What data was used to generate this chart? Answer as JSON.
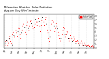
{
  "title": "Milwaukee Weather  Solar Radiation\nAvg per Day W/m²/minute",
  "title_fontsize": 3.0,
  "background_color": "#ffffff",
  "plot_background": "#ffffff",
  "legend_label": "Solar Rad",
  "legend_color": "#ff0000",
  "dot_color_primary": "#ff0000",
  "dot_color_secondary": "#000000",
  "dashed_line_color": "#bbbbbb",
  "yticks": [
    0,
    1,
    2,
    3,
    4,
    5,
    6,
    7,
    8
  ],
  "ylim": [
    -0.2,
    8.5
  ],
  "xlim": [
    0,
    365
  ],
  "data": [
    {
      "day": 1,
      "val": 1.2,
      "color": "#000000"
    },
    {
      "day": 3,
      "val": 0.8,
      "color": "#ff0000"
    },
    {
      "day": 5,
      "val": 1.5,
      "color": "#ff0000"
    },
    {
      "day": 8,
      "val": 2.0,
      "color": "#000000"
    },
    {
      "day": 10,
      "val": 1.8,
      "color": "#ff0000"
    },
    {
      "day": 12,
      "val": 0.5,
      "color": "#ff0000"
    },
    {
      "day": 15,
      "val": 1.2,
      "color": "#ff0000"
    },
    {
      "day": 18,
      "val": 2.5,
      "color": "#000000"
    },
    {
      "day": 20,
      "val": 3.0,
      "color": "#ff0000"
    },
    {
      "day": 22,
      "val": 2.2,
      "color": "#ff0000"
    },
    {
      "day": 25,
      "val": 1.5,
      "color": "#ff0000"
    },
    {
      "day": 28,
      "val": 1.0,
      "color": "#ff0000"
    },
    {
      "day": 31,
      "val": 0.8,
      "color": "#000000"
    },
    {
      "day": 33,
      "val": 3.5,
      "color": "#ff0000"
    },
    {
      "day": 36,
      "val": 4.0,
      "color": "#ff0000"
    },
    {
      "day": 39,
      "val": 3.2,
      "color": "#000000"
    },
    {
      "day": 42,
      "val": 2.8,
      "color": "#ff0000"
    },
    {
      "day": 45,
      "val": 4.5,
      "color": "#ff0000"
    },
    {
      "day": 48,
      "val": 3.8,
      "color": "#ff0000"
    },
    {
      "day": 51,
      "val": 3.0,
      "color": "#ff0000"
    },
    {
      "day": 54,
      "val": 4.2,
      "color": "#000000"
    },
    {
      "day": 57,
      "val": 5.0,
      "color": "#ff0000"
    },
    {
      "day": 60,
      "val": 4.8,
      "color": "#ff0000"
    },
    {
      "day": 63,
      "val": 3.5,
      "color": "#ff0000"
    },
    {
      "day": 66,
      "val": 2.5,
      "color": "#ff0000"
    },
    {
      "day": 69,
      "val": 3.8,
      "color": "#000000"
    },
    {
      "day": 72,
      "val": 4.5,
      "color": "#ff0000"
    },
    {
      "day": 75,
      "val": 5.5,
      "color": "#ff0000"
    },
    {
      "day": 78,
      "val": 6.0,
      "color": "#ff0000"
    },
    {
      "day": 81,
      "val": 5.2,
      "color": "#000000"
    },
    {
      "day": 84,
      "val": 4.0,
      "color": "#ff0000"
    },
    {
      "day": 87,
      "val": 3.5,
      "color": "#ff0000"
    },
    {
      "day": 90,
      "val": 5.8,
      "color": "#ff0000"
    },
    {
      "day": 93,
      "val": 6.5,
      "color": "#ff0000"
    },
    {
      "day": 96,
      "val": 5.0,
      "color": "#000000"
    },
    {
      "day": 99,
      "val": 4.5,
      "color": "#ff0000"
    },
    {
      "day": 102,
      "val": 5.5,
      "color": "#ff0000"
    },
    {
      "day": 105,
      "val": 6.8,
      "color": "#ff0000"
    },
    {
      "day": 108,
      "val": 7.0,
      "color": "#ff0000"
    },
    {
      "day": 111,
      "val": 6.2,
      "color": "#000000"
    },
    {
      "day": 114,
      "val": 5.5,
      "color": "#ff0000"
    },
    {
      "day": 117,
      "val": 4.8,
      "color": "#ff0000"
    },
    {
      "day": 120,
      "val": 5.2,
      "color": "#ff0000"
    },
    {
      "day": 123,
      "val": 6.0,
      "color": "#ff0000"
    },
    {
      "day": 126,
      "val": 7.2,
      "color": "#000000"
    },
    {
      "day": 129,
      "val": 6.5,
      "color": "#ff0000"
    },
    {
      "day": 132,
      "val": 5.8,
      "color": "#ff0000"
    },
    {
      "day": 135,
      "val": 6.5,
      "color": "#ff0000"
    },
    {
      "day": 138,
      "val": 7.5,
      "color": "#ff0000"
    },
    {
      "day": 141,
      "val": 6.8,
      "color": "#000000"
    },
    {
      "day": 144,
      "val": 5.5,
      "color": "#ff0000"
    },
    {
      "day": 147,
      "val": 4.2,
      "color": "#ff0000"
    },
    {
      "day": 150,
      "val": 5.8,
      "color": "#ff0000"
    },
    {
      "day": 153,
      "val": 7.0,
      "color": "#ff0000"
    },
    {
      "day": 156,
      "val": 7.8,
      "color": "#000000"
    },
    {
      "day": 159,
      "val": 6.5,
      "color": "#ff0000"
    },
    {
      "day": 162,
      "val": 5.8,
      "color": "#ff0000"
    },
    {
      "day": 165,
      "val": 7.2,
      "color": "#ff0000"
    },
    {
      "day": 168,
      "val": 7.8,
      "color": "#ff0000"
    },
    {
      "day": 171,
      "val": 6.0,
      "color": "#000000"
    },
    {
      "day": 174,
      "val": 4.5,
      "color": "#ff0000"
    },
    {
      "day": 177,
      "val": 3.8,
      "color": "#ff0000"
    },
    {
      "day": 180,
      "val": 2.5,
      "color": "#ff0000"
    },
    {
      "day": 183,
      "val": 1.5,
      "color": "#ff0000"
    },
    {
      "day": 186,
      "val": 2.8,
      "color": "#000000"
    },
    {
      "day": 189,
      "val": 4.5,
      "color": "#ff0000"
    },
    {
      "day": 192,
      "val": 6.0,
      "color": "#ff0000"
    },
    {
      "day": 195,
      "val": 7.0,
      "color": "#ff0000"
    },
    {
      "day": 198,
      "val": 6.5,
      "color": "#ff0000"
    },
    {
      "day": 201,
      "val": 5.5,
      "color": "#000000"
    },
    {
      "day": 204,
      "val": 4.2,
      "color": "#ff0000"
    },
    {
      "day": 207,
      "val": 5.0,
      "color": "#ff0000"
    },
    {
      "day": 210,
      "val": 6.2,
      "color": "#ff0000"
    },
    {
      "day": 213,
      "val": 5.5,
      "color": "#ff0000"
    },
    {
      "day": 216,
      "val": 4.8,
      "color": "#000000"
    },
    {
      "day": 219,
      "val": 4.0,
      "color": "#ff0000"
    },
    {
      "day": 222,
      "val": 3.2,
      "color": "#ff0000"
    },
    {
      "day": 225,
      "val": 2.5,
      "color": "#ff0000"
    },
    {
      "day": 228,
      "val": 1.8,
      "color": "#ff0000"
    },
    {
      "day": 231,
      "val": 2.5,
      "color": "#000000"
    },
    {
      "day": 234,
      "val": 3.5,
      "color": "#ff0000"
    },
    {
      "day": 237,
      "val": 4.5,
      "color": "#ff0000"
    },
    {
      "day": 240,
      "val": 5.2,
      "color": "#ff0000"
    },
    {
      "day": 243,
      "val": 4.8,
      "color": "#ff0000"
    },
    {
      "day": 246,
      "val": 3.5,
      "color": "#000000"
    },
    {
      "day": 249,
      "val": 2.8,
      "color": "#ff0000"
    },
    {
      "day": 252,
      "val": 3.5,
      "color": "#ff0000"
    },
    {
      "day": 255,
      "val": 4.2,
      "color": "#ff0000"
    },
    {
      "day": 258,
      "val": 3.8,
      "color": "#ff0000"
    },
    {
      "day": 261,
      "val": 2.5,
      "color": "#000000"
    },
    {
      "day": 264,
      "val": 1.8,
      "color": "#ff0000"
    },
    {
      "day": 267,
      "val": 2.5,
      "color": "#ff0000"
    },
    {
      "day": 270,
      "val": 3.2,
      "color": "#ff0000"
    },
    {
      "day": 273,
      "val": 2.5,
      "color": "#ff0000"
    },
    {
      "day": 276,
      "val": 1.5,
      "color": "#000000"
    },
    {
      "day": 279,
      "val": 2.0,
      "color": "#ff0000"
    },
    {
      "day": 282,
      "val": 2.8,
      "color": "#ff0000"
    },
    {
      "day": 285,
      "val": 2.2,
      "color": "#ff0000"
    },
    {
      "day": 288,
      "val": 1.5,
      "color": "#ff0000"
    },
    {
      "day": 291,
      "val": 1.0,
      "color": "#000000"
    },
    {
      "day": 294,
      "val": 1.5,
      "color": "#ff0000"
    },
    {
      "day": 297,
      "val": 2.0,
      "color": "#ff0000"
    },
    {
      "day": 300,
      "val": 1.5,
      "color": "#ff0000"
    },
    {
      "day": 303,
      "val": 1.0,
      "color": "#ff0000"
    },
    {
      "day": 306,
      "val": 0.8,
      "color": "#000000"
    },
    {
      "day": 309,
      "val": 1.2,
      "color": "#ff0000"
    },
    {
      "day": 312,
      "val": 1.8,
      "color": "#ff0000"
    },
    {
      "day": 315,
      "val": 1.2,
      "color": "#ff0000"
    },
    {
      "day": 318,
      "val": 0.8,
      "color": "#ff0000"
    },
    {
      "day": 321,
      "val": 0.5,
      "color": "#000000"
    },
    {
      "day": 324,
      "val": 0.8,
      "color": "#ff0000"
    },
    {
      "day": 327,
      "val": 1.2,
      "color": "#ff0000"
    },
    {
      "day": 330,
      "val": 0.8,
      "color": "#ff0000"
    },
    {
      "day": 333,
      "val": 0.5,
      "color": "#ff0000"
    },
    {
      "day": 336,
      "val": 0.3,
      "color": "#000000"
    },
    {
      "day": 339,
      "val": 0.5,
      "color": "#ff0000"
    },
    {
      "day": 342,
      "val": 0.8,
      "color": "#ff0000"
    },
    {
      "day": 345,
      "val": 0.5,
      "color": "#ff0000"
    },
    {
      "day": 348,
      "val": 0.3,
      "color": "#ff0000"
    },
    {
      "day": 351,
      "val": 0.2,
      "color": "#000000"
    },
    {
      "day": 354,
      "val": 0.3,
      "color": "#ff0000"
    },
    {
      "day": 357,
      "val": 0.5,
      "color": "#ff0000"
    },
    {
      "day": 360,
      "val": 0.3,
      "color": "#ff0000"
    },
    {
      "day": 363,
      "val": 0.2,
      "color": "#ff0000"
    }
  ],
  "month_ticks": [
    1,
    32,
    60,
    91,
    121,
    152,
    182,
    213,
    244,
    274,
    305,
    335,
    365
  ],
  "month_labels": [
    "Jan",
    "Feb",
    "Mar",
    "Apr",
    "May",
    "Jun",
    "Jul",
    "Aug",
    "Sep",
    "Oct",
    "Nov",
    "Dec",
    ""
  ]
}
